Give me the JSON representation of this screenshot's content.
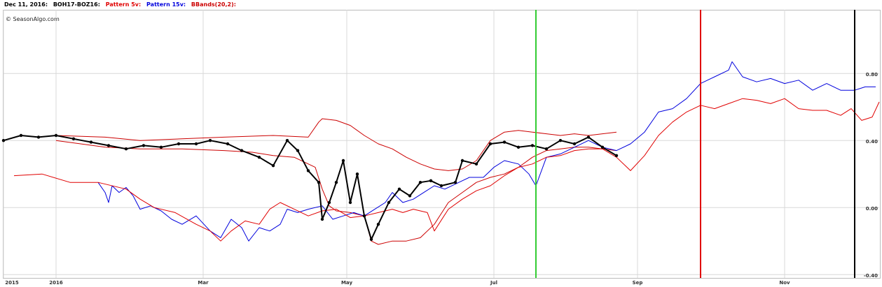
{
  "chart_data": {
    "type": "line",
    "date_label": "Dec 11, 2016:",
    "copyright": "© SeasonAlgo.com",
    "xlim": [
      0,
      250
    ],
    "xticks": [
      {
        "value": 0,
        "label": "2015"
      },
      {
        "value": 15,
        "label": "2016"
      },
      {
        "value": 57,
        "label": "Mar"
      },
      {
        "value": 98,
        "label": "May"
      },
      {
        "value": 140,
        "label": "Jul"
      },
      {
        "value": 181,
        "label": "Sep"
      },
      {
        "value": 223,
        "label": "Nov"
      }
    ],
    "ylim": [
      -0.42,
      1.18
    ],
    "yticks": [
      {
        "value": -0.4,
        "label": "-0.40"
      },
      {
        "value": 0,
        "label": "0.00"
      },
      {
        "value": 0.4,
        "label": "0.40"
      },
      {
        "value": 0.8,
        "label": "0.80"
      }
    ],
    "grid": true,
    "series": [
      {
        "name": "BOH17-BOZ16:",
        "color": "#000000",
        "markers": true,
        "x": [
          0,
          5,
          10,
          15,
          20,
          25,
          30,
          35,
          40,
          45,
          50,
          55,
          59,
          64,
          68,
          73,
          77,
          81,
          84,
          87,
          90,
          91,
          93,
          95,
          97,
          99,
          101,
          103,
          105,
          107,
          110,
          113,
          116,
          119,
          122,
          125,
          129,
          131,
          135,
          139,
          143,
          147,
          151,
          155,
          159,
          163,
          167,
          171,
          175
        ],
        "values": [
          0.4,
          0.43,
          0.42,
          0.43,
          0.41,
          0.39,
          0.37,
          0.35,
          0.37,
          0.36,
          0.38,
          0.38,
          0.4,
          0.38,
          0.34,
          0.3,
          0.25,
          0.4,
          0.34,
          0.22,
          0.15,
          -0.07,
          0.03,
          0.15,
          0.28,
          0.03,
          0.2,
          -0.05,
          -0.19,
          -0.1,
          0.03,
          0.11,
          0.07,
          0.15,
          0.16,
          0.13,
          0.15,
          0.28,
          0.26,
          0.38,
          0.39,
          0.36,
          0.37,
          0.35,
          0.4,
          0.38,
          0.42,
          0.36,
          0.31
        ]
      },
      {
        "name": "Pattern 5v:",
        "color": "#e00000",
        "markers": false,
        "x": [
          3,
          11,
          19,
          27,
          35,
          39,
          43,
          49,
          55,
          59,
          62,
          65,
          69,
          73,
          76,
          79,
          83,
          87,
          91,
          95,
          99,
          103,
          107,
          111,
          114,
          117,
          121,
          123,
          127,
          131,
          135,
          139,
          143,
          147,
          151,
          155,
          159,
          163,
          167,
          171,
          175,
          179,
          183,
          187,
          191,
          195,
          199,
          203,
          207,
          211,
          215,
          219,
          223,
          227,
          231,
          235,
          239,
          242,
          245,
          248,
          250
        ],
        "values": [
          0.19,
          0.2,
          0.15,
          0.15,
          0.11,
          0.05,
          0.0,
          -0.03,
          -0.1,
          -0.14,
          -0.2,
          -0.14,
          -0.08,
          -0.1,
          -0.01,
          0.03,
          -0.01,
          -0.05,
          -0.02,
          -0.01,
          -0.06,
          -0.05,
          -0.03,
          -0.01,
          -0.03,
          -0.01,
          -0.03,
          -0.14,
          -0.01,
          0.05,
          0.1,
          0.13,
          0.19,
          0.24,
          0.26,
          0.3,
          0.31,
          0.34,
          0.35,
          0.35,
          0.3,
          0.22,
          0.31,
          0.43,
          0.51,
          0.57,
          0.61,
          0.59,
          0.62,
          0.65,
          0.64,
          0.62,
          0.65,
          0.59,
          0.58,
          0.58,
          0.55,
          0.59,
          0.52,
          0.54,
          0.63
        ]
      },
      {
        "name": "Pattern 15v:",
        "color": "#0000dd",
        "markers": false,
        "x": [
          27,
          29,
          30,
          31,
          33,
          35,
          37,
          39,
          42,
          45,
          48,
          51,
          55,
          59,
          62,
          65,
          68,
          70,
          73,
          76,
          79,
          81,
          84,
          87,
          91,
          94,
          97,
          100,
          103,
          106,
          109,
          111,
          114,
          117,
          120,
          123,
          126,
          130,
          133,
          137,
          140,
          143,
          147,
          150,
          152,
          155,
          159,
          163,
          167,
          171,
          175,
          179,
          183,
          187,
          191,
          195,
          199,
          203,
          207,
          208,
          211,
          215,
          219,
          223,
          227,
          231,
          235,
          239,
          243,
          246,
          249
        ],
        "values": [
          0.15,
          0.09,
          0.03,
          0.13,
          0.09,
          0.12,
          0.07,
          -0.01,
          0.01,
          -0.02,
          -0.07,
          -0.1,
          -0.05,
          -0.14,
          -0.18,
          -0.07,
          -0.12,
          -0.2,
          -0.12,
          -0.14,
          -0.1,
          -0.01,
          -0.03,
          -0.01,
          0.01,
          -0.07,
          -0.05,
          -0.03,
          -0.05,
          -0.01,
          0.03,
          0.09,
          0.03,
          0.05,
          0.09,
          0.13,
          0.11,
          0.15,
          0.18,
          0.18,
          0.24,
          0.28,
          0.26,
          0.2,
          0.13,
          0.3,
          0.32,
          0.36,
          0.4,
          0.36,
          0.34,
          0.38,
          0.45,
          0.57,
          0.59,
          0.65,
          0.74,
          0.78,
          0.82,
          0.87,
          0.78,
          0.75,
          0.77,
          0.74,
          0.76,
          0.7,
          0.74,
          0.7,
          0.7,
          0.72,
          0.72
        ]
      }
    ],
    "bands": {
      "name": "BBands(20,2):",
      "color": "#cc0000",
      "upper": {
        "x": [
          15,
          29,
          39,
          51,
          63,
          77,
          87,
          90,
          91,
          95,
          99,
          103,
          107,
          111,
          115,
          119,
          123,
          127,
          131,
          135,
          139,
          143,
          147,
          151,
          155,
          159,
          163,
          167,
          171,
          175
        ],
        "values": [
          0.43,
          0.42,
          0.4,
          0.41,
          0.42,
          0.43,
          0.42,
          0.51,
          0.53,
          0.52,
          0.49,
          0.43,
          0.38,
          0.35,
          0.3,
          0.26,
          0.23,
          0.22,
          0.23,
          0.28,
          0.4,
          0.45,
          0.46,
          0.45,
          0.44,
          0.43,
          0.44,
          0.43,
          0.44,
          0.45
        ]
      },
      "lower": {
        "x": [
          15,
          29,
          39,
          51,
          63,
          71,
          77,
          83,
          89,
          91,
          93,
          95,
          99,
          103,
          105,
          107,
          111,
          115,
          119,
          123,
          127,
          131,
          135,
          139,
          143,
          147,
          151,
          155,
          159,
          163,
          167,
          171,
          175
        ],
        "values": [
          0.4,
          0.36,
          0.35,
          0.35,
          0.34,
          0.33,
          0.31,
          0.3,
          0.24,
          0.11,
          0.01,
          -0.02,
          -0.03,
          -0.05,
          -0.2,
          -0.22,
          -0.2,
          -0.2,
          -0.18,
          -0.1,
          0.03,
          0.09,
          0.15,
          0.18,
          0.2,
          0.24,
          0.3,
          0.34,
          0.35,
          0.36,
          0.36,
          0.35,
          0.34
        ]
      }
    },
    "vlines": [
      {
        "x": 152,
        "color": "#33cc33"
      },
      {
        "x": 199,
        "color": "#e00000"
      },
      {
        "x": 243,
        "color": "#000000"
      }
    ]
  }
}
